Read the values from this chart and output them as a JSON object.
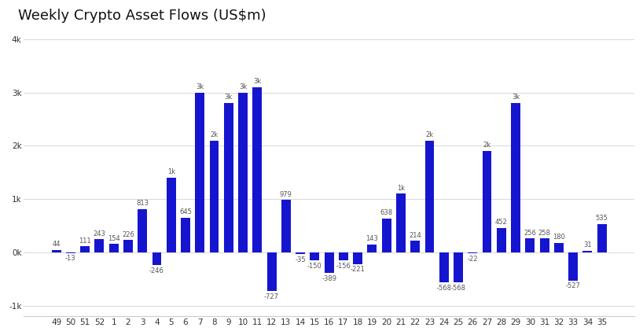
{
  "title": "Weekly Crypto Asset Flows (US$m)",
  "categories": [
    "49",
    "50",
    "51",
    "52",
    "1",
    "2",
    "3",
    "4",
    "5",
    "6",
    "7",
    "8",
    "9",
    "10",
    "11",
    "12",
    "13",
    "14",
    "15",
    "16",
    "17",
    "18",
    "19",
    "20",
    "21",
    "22",
    "23",
    "24",
    "25",
    "26",
    "27",
    "28",
    "29",
    "30",
    "31",
    "32",
    "33",
    "34",
    "35"
  ],
  "values": [
    44,
    -13,
    111,
    243,
    154,
    226,
    813,
    -246,
    1400,
    645,
    3000,
    2100,
    2800,
    3000,
    3100,
    -727,
    979,
    -35,
    -150,
    -389,
    -156,
    -221,
    143,
    638,
    1100,
    214,
    2100,
    -568,
    -568,
    -22,
    1900,
    452,
    2800,
    256,
    258,
    180,
    -527,
    31,
    535
  ],
  "bar_color": "#1515d0",
  "background_color": "#ffffff",
  "grid_color": "#d8d8d8",
  "ylim": [
    -1200,
    4200
  ],
  "ytick_values": [
    -1000,
    0,
    1000,
    2000,
    3000,
    4000
  ],
  "ytick_labels": [
    "-1k",
    "0k",
    "1k",
    "2k",
    "3k",
    "4k"
  ],
  "title_fontsize": 13,
  "label_fontsize": 6,
  "tick_fontsize": 7.5
}
